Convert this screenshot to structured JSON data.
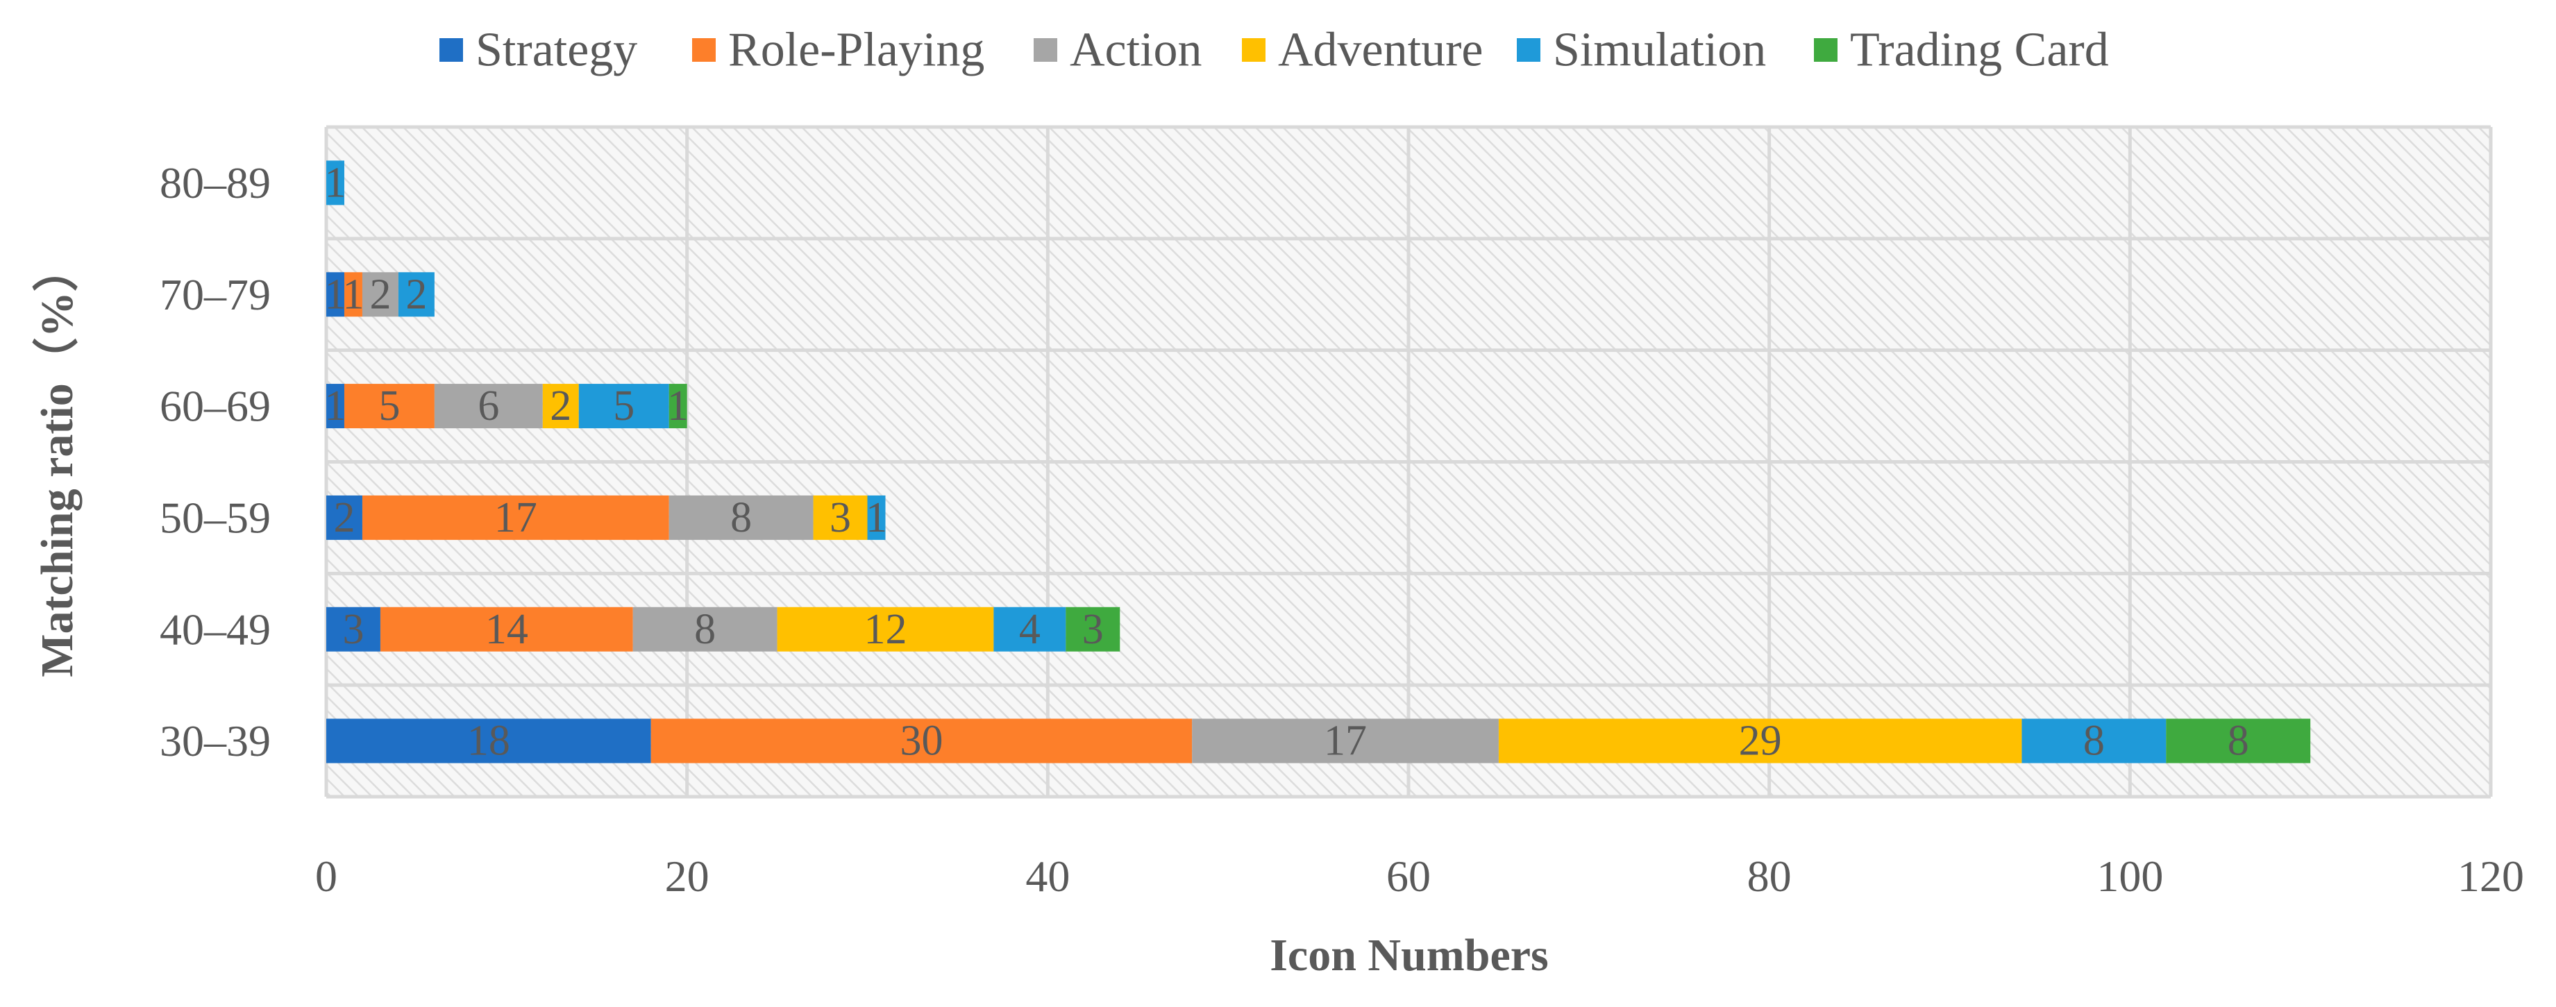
{
  "chart_data": {
    "type": "bar",
    "orientation": "horizontal",
    "stacked": true,
    "title": "",
    "xlabel": "Icon Numbers",
    "ylabel": "Matching ratio（%）",
    "xlim": [
      0,
      120
    ],
    "xticks": [
      0,
      20,
      40,
      60,
      80,
      100,
      120
    ],
    "grid": true,
    "legend": "top",
    "categories": [
      "30–39",
      "40–49",
      "50–59",
      "60–69",
      "70–79",
      "80–89"
    ],
    "series": [
      {
        "name": "Strategy",
        "color": "#1f6fc5",
        "values": [
          18,
          3,
          2,
          1,
          1,
          0
        ]
      },
      {
        "name": "Role-Playing",
        "color": "#fd7f2a",
        "values": [
          30,
          14,
          17,
          5,
          1,
          0
        ]
      },
      {
        "name": "Action",
        "color": "#a6a6a6",
        "values": [
          17,
          8,
          8,
          6,
          2,
          0
        ]
      },
      {
        "name": "Adventure",
        "color": "#ffc000",
        "values": [
          29,
          12,
          3,
          2,
          0,
          0
        ]
      },
      {
        "name": "Simulation",
        "color": "#1f9ad9",
        "values": [
          8,
          4,
          1,
          5,
          2,
          1
        ]
      },
      {
        "name": "Trading Card",
        "color": "#3faa3f",
        "values": [
          8,
          3,
          0,
          1,
          0,
          0
        ]
      }
    ]
  }
}
